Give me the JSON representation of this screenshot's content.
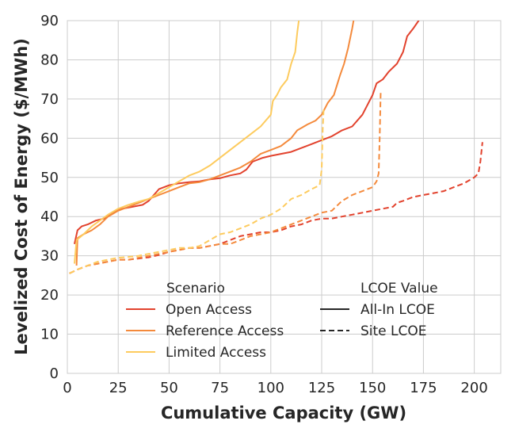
{
  "chart_data": {
    "type": "line",
    "xlabel": "Cumulative Capacity (GW)",
    "ylabel": "Levelized Cost of Energy ($/MWh)",
    "xlim": [
      0,
      213
    ],
    "ylim": [
      0,
      90
    ],
    "xticks": [
      0,
      25,
      50,
      75,
      100,
      125,
      150,
      175,
      200
    ],
    "yticks": [
      0,
      10,
      20,
      30,
      40,
      50,
      60,
      70,
      80,
      90
    ],
    "grid": true,
    "legend": {
      "placement": "lower-center",
      "scenario_title": "Scenario",
      "scenario_entries": [
        {
          "label": "Open Access",
          "color": "#e2422d"
        },
        {
          "label": "Reference Access",
          "color": "#f48a3c"
        },
        {
          "label": "Limited Access",
          "color": "#fdcb5e"
        }
      ],
      "lcoe_title": "LCOE Value",
      "lcoe_entries": [
        {
          "label": "All-In LCOE",
          "dash": "solid"
        },
        {
          "label": "Site LCOE",
          "dash": "dashed"
        }
      ]
    },
    "series": [
      {
        "name": "Open Access",
        "lcoe": "All-In LCOE",
        "color": "#e2422d",
        "dash": "solid",
        "points": [
          [
            3.5,
            33
          ],
          [
            5,
            36.5
          ],
          [
            7,
            37.5
          ],
          [
            10,
            38
          ],
          [
            14,
            39
          ],
          [
            18,
            39.5
          ],
          [
            22,
            41
          ],
          [
            27,
            42
          ],
          [
            32,
            42.5
          ],
          [
            37,
            43
          ],
          [
            40,
            44
          ],
          [
            45,
            47
          ],
          [
            50,
            48
          ],
          [
            55,
            48.5
          ],
          [
            60,
            48.8
          ],
          [
            65,
            49
          ],
          [
            70,
            49.5
          ],
          [
            75,
            49.8
          ],
          [
            80,
            50.5
          ],
          [
            85,
            51
          ],
          [
            88,
            52
          ],
          [
            91,
            54
          ],
          [
            96,
            55
          ],
          [
            100,
            55.5
          ],
          [
            105,
            56
          ],
          [
            110,
            56.5
          ],
          [
            115,
            57.5
          ],
          [
            120,
            58.5
          ],
          [
            125,
            59.5
          ],
          [
            130,
            60.5
          ],
          [
            135,
            62
          ],
          [
            140,
            63
          ],
          [
            145,
            66
          ],
          [
            150,
            71
          ],
          [
            152,
            74
          ],
          [
            155,
            75
          ],
          [
            158,
            77
          ],
          [
            162,
            79
          ],
          [
            165,
            82
          ],
          [
            167,
            86
          ],
          [
            170,
            88
          ],
          [
            172,
            89.5
          ],
          [
            174,
            91
          ]
        ]
      },
      {
        "name": "Reference Access",
        "lcoe": "All-In LCOE",
        "color": "#f48a3c",
        "dash": "solid",
        "points": [
          [
            4.5,
            27.5
          ],
          [
            5,
            34.5
          ],
          [
            8,
            35.5
          ],
          [
            12,
            36.5
          ],
          [
            16,
            38
          ],
          [
            20,
            40
          ],
          [
            25,
            41.5
          ],
          [
            30,
            42.5
          ],
          [
            35,
            43.5
          ],
          [
            40,
            44.5
          ],
          [
            45,
            45.5
          ],
          [
            50,
            46.5
          ],
          [
            55,
            47.5
          ],
          [
            60,
            48.5
          ],
          [
            65,
            48.8
          ],
          [
            70,
            49.5
          ],
          [
            75,
            50.5
          ],
          [
            80,
            51.5
          ],
          [
            85,
            52.5
          ],
          [
            90,
            54
          ],
          [
            95,
            56
          ],
          [
            100,
            57
          ],
          [
            105,
            58
          ],
          [
            110,
            60
          ],
          [
            113,
            62
          ],
          [
            118,
            63.5
          ],
          [
            122,
            64.5
          ],
          [
            125,
            66
          ],
          [
            128,
            69
          ],
          [
            131,
            71
          ],
          [
            134,
            76
          ],
          [
            136,
            79
          ],
          [
            138,
            83
          ],
          [
            140,
            88
          ],
          [
            141,
            91
          ]
        ]
      },
      {
        "name": "Limited Access",
        "lcoe": "All-In LCOE",
        "color": "#fdcb5e",
        "dash": "solid",
        "points": [
          [
            3.5,
            28
          ],
          [
            4.5,
            34
          ],
          [
            8,
            35.5
          ],
          [
            12,
            37.5
          ],
          [
            16,
            39
          ],
          [
            20,
            40.5
          ],
          [
            25,
            42
          ],
          [
            30,
            43
          ],
          [
            35,
            43.8
          ],
          [
            40,
            44.5
          ],
          [
            45,
            46
          ],
          [
            50,
            47.5
          ],
          [
            55,
            49
          ],
          [
            60,
            50.5
          ],
          [
            65,
            51.5
          ],
          [
            70,
            53
          ],
          [
            75,
            55
          ],
          [
            80,
            57
          ],
          [
            85,
            59
          ],
          [
            90,
            61
          ],
          [
            95,
            63
          ],
          [
            100,
            66
          ],
          [
            101,
            69.5
          ],
          [
            103,
            71
          ],
          [
            105,
            73
          ],
          [
            108,
            75
          ],
          [
            110,
            79
          ],
          [
            112,
            82
          ],
          [
            113,
            87
          ],
          [
            114,
            91
          ]
        ]
      },
      {
        "name": "Open Access",
        "lcoe": "Site LCOE",
        "color": "#e2422d",
        "dash": "dashed",
        "points": [
          [
            1,
            25.5
          ],
          [
            5,
            26.5
          ],
          [
            10,
            27.5
          ],
          [
            15,
            28
          ],
          [
            20,
            28.5
          ],
          [
            25,
            29
          ],
          [
            30,
            29
          ],
          [
            35,
            29.3
          ],
          [
            40,
            29.6
          ],
          [
            45,
            30.2
          ],
          [
            50,
            31
          ],
          [
            55,
            31.5
          ],
          [
            60,
            32
          ],
          [
            65,
            32
          ],
          [
            70,
            32.5
          ],
          [
            75,
            33
          ],
          [
            80,
            34
          ],
          [
            85,
            35
          ],
          [
            90,
            35.5
          ],
          [
            95,
            36
          ],
          [
            100,
            36
          ],
          [
            105,
            36.5
          ],
          [
            110,
            37.5
          ],
          [
            115,
            38
          ],
          [
            120,
            39
          ],
          [
            125,
            39.5
          ],
          [
            130,
            39.5
          ],
          [
            135,
            40
          ],
          [
            140,
            40.5
          ],
          [
            145,
            41
          ],
          [
            150,
            41.5
          ],
          [
            155,
            42
          ],
          [
            160,
            42.5
          ],
          [
            162,
            43.5
          ],
          [
            165,
            44
          ],
          [
            170,
            45
          ],
          [
            175,
            45.5
          ],
          [
            180,
            46
          ],
          [
            185,
            46.5
          ],
          [
            190,
            47.5
          ],
          [
            195,
            48.5
          ],
          [
            200,
            50
          ],
          [
            202,
            51
          ],
          [
            203,
            54
          ],
          [
            204,
            59
          ]
        ]
      },
      {
        "name": "Reference Access",
        "lcoe": "Site LCOE",
        "color": "#f48a3c",
        "dash": "dashed",
        "points": [
          [
            1,
            25.5
          ],
          [
            5,
            26.5
          ],
          [
            10,
            27.5
          ],
          [
            15,
            28
          ],
          [
            20,
            28.5
          ],
          [
            25,
            29
          ],
          [
            30,
            29
          ],
          [
            35,
            29.5
          ],
          [
            40,
            30
          ],
          [
            45,
            30.5
          ],
          [
            50,
            31
          ],
          [
            55,
            31.5
          ],
          [
            60,
            32
          ],
          [
            65,
            32
          ],
          [
            70,
            32.5
          ],
          [
            75,
            33
          ],
          [
            80,
            33
          ],
          [
            85,
            34
          ],
          [
            90,
            35
          ],
          [
            95,
            35.5
          ],
          [
            100,
            36
          ],
          [
            105,
            37
          ],
          [
            110,
            38
          ],
          [
            115,
            39
          ],
          [
            120,
            40
          ],
          [
            125,
            41
          ],
          [
            130,
            41.5
          ],
          [
            135,
            44
          ],
          [
            140,
            45.5
          ],
          [
            145,
            46.5
          ],
          [
            150,
            47.5
          ],
          [
            152,
            49
          ],
          [
            153,
            51
          ],
          [
            153.5,
            60
          ],
          [
            154,
            72
          ]
        ]
      },
      {
        "name": "Limited Access",
        "lcoe": "Site LCOE",
        "color": "#fdcb5e",
        "dash": "dashed",
        "points": [
          [
            1,
            25.5
          ],
          [
            5,
            26.5
          ],
          [
            10,
            27.5
          ],
          [
            15,
            28.5
          ],
          [
            20,
            29
          ],
          [
            25,
            29.5
          ],
          [
            30,
            29.7
          ],
          [
            35,
            30
          ],
          [
            40,
            30.5
          ],
          [
            45,
            31
          ],
          [
            50,
            31.5
          ],
          [
            55,
            32
          ],
          [
            60,
            32
          ],
          [
            65,
            32.5
          ],
          [
            70,
            34
          ],
          [
            75,
            35.5
          ],
          [
            80,
            36
          ],
          [
            85,
            37
          ],
          [
            90,
            38
          ],
          [
            95,
            39.5
          ],
          [
            100,
            40.5
          ],
          [
            105,
            42
          ],
          [
            110,
            44.5
          ],
          [
            115,
            45.5
          ],
          [
            120,
            47
          ],
          [
            124,
            48
          ],
          [
            125,
            52
          ],
          [
            125.5,
            62
          ],
          [
            126,
            68
          ]
        ]
      }
    ]
  }
}
